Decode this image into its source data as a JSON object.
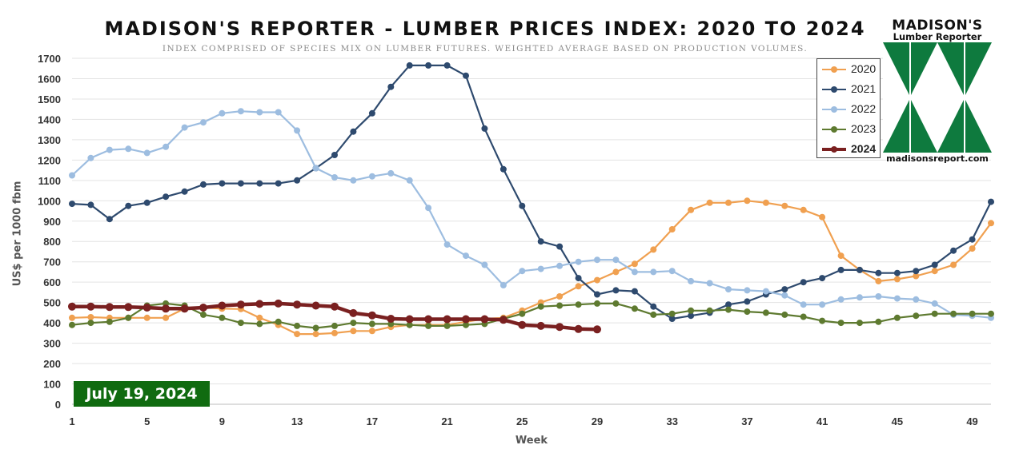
{
  "title": "MADISON'S REPORTER - LUMBER PRICES INDEX: 2020 TO 2024",
  "subtitle": "INDEX COMPRISED OF SPECIES MIX ON LUMBER FUTURES. WEIGHTED AVERAGE BASED ON PRODUCTION VOLUMES.",
  "date_badge": "July 19, 2024",
  "logo": {
    "title": "MADISON'S",
    "subtitle": "Lumber Reporter",
    "url": "madisonsreport.com",
    "icon": "triangles-logo-icon",
    "color": "#0e7a3e"
  },
  "chart_data": {
    "type": "line",
    "title": "MADISON'S REPORTER - LUMBER PRICES INDEX: 2020 TO 2024",
    "xlabel": "Week",
    "ylabel": "US$ per 1000 fbm",
    "xlim": [
      1,
      50
    ],
    "ylim": [
      0,
      1700
    ],
    "x_ticks": [
      1,
      5,
      9,
      13,
      17,
      21,
      25,
      29,
      33,
      37,
      41,
      45,
      49
    ],
    "y_ticks": [
      0,
      100,
      200,
      300,
      400,
      500,
      600,
      700,
      800,
      900,
      1000,
      1100,
      1200,
      1300,
      1400,
      1500,
      1600,
      1700
    ],
    "grid": "horizontal",
    "legend_position": "top-right",
    "series": [
      {
        "name": "2020",
        "color": "#f0a050",
        "values": [
          425,
          428,
          425,
          425,
          425,
          425,
          470,
          475,
          470,
          468,
          425,
          390,
          345,
          345,
          350,
          360,
          360,
          380,
          390,
          390,
          390,
          405,
          420,
          425,
          460,
          500,
          530,
          580,
          610,
          650,
          690,
          760,
          860,
          955,
          990,
          990,
          1000,
          990,
          975,
          955,
          920,
          730,
          660,
          605,
          615,
          630,
          655,
          685,
          765,
          890
        ]
      },
      {
        "name": "2021",
        "color": "#2e4a6e",
        "values": [
          985,
          980,
          910,
          975,
          990,
          1020,
          1045,
          1080,
          1085,
          1085,
          1085,
          1085,
          1100,
          1160,
          1225,
          1340,
          1430,
          1560,
          1665,
          1665,
          1665,
          1615,
          1355,
          1155,
          975,
          800,
          775,
          620,
          540,
          560,
          555,
          480,
          420,
          435,
          450,
          490,
          505,
          540,
          565,
          600,
          620,
          660,
          660,
          645,
          645,
          655,
          685,
          755,
          810,
          995
        ]
      },
      {
        "name": "2022",
        "color": "#9dbde0",
        "values": [
          1125,
          1210,
          1250,
          1255,
          1235,
          1265,
          1360,
          1385,
          1430,
          1440,
          1435,
          1435,
          1345,
          1160,
          1115,
          1100,
          1120,
          1135,
          1100,
          965,
          785,
          730,
          685,
          585,
          655,
          665,
          680,
          700,
          710,
          710,
          650,
          650,
          655,
          605,
          595,
          565,
          560,
          555,
          535,
          490,
          490,
          515,
          525,
          530,
          520,
          515,
          495,
          440,
          435,
          425
        ]
      },
      {
        "name": "2023",
        "color": "#5e7a30",
        "values": [
          390,
          400,
          405,
          425,
          485,
          495,
          485,
          440,
          425,
          400,
          395,
          405,
          385,
          375,
          385,
          400,
          395,
          395,
          390,
          385,
          385,
          390,
          395,
          420,
          445,
          480,
          485,
          490,
          495,
          495,
          470,
          440,
          445,
          460,
          460,
          465,
          455,
          450,
          440,
          430,
          410,
          400,
          400,
          405,
          425,
          435,
          445,
          445,
          445,
          445
        ]
      },
      {
        "name": "2024",
        "color": "#7a2020",
        "values": [
          480,
          480,
          478,
          478,
          475,
          470,
          470,
          475,
          485,
          490,
          493,
          495,
          490,
          485,
          480,
          448,
          437,
          420,
          418,
          418,
          418,
          418,
          418,
          415,
          390,
          385,
          380,
          370,
          368
        ]
      }
    ]
  }
}
